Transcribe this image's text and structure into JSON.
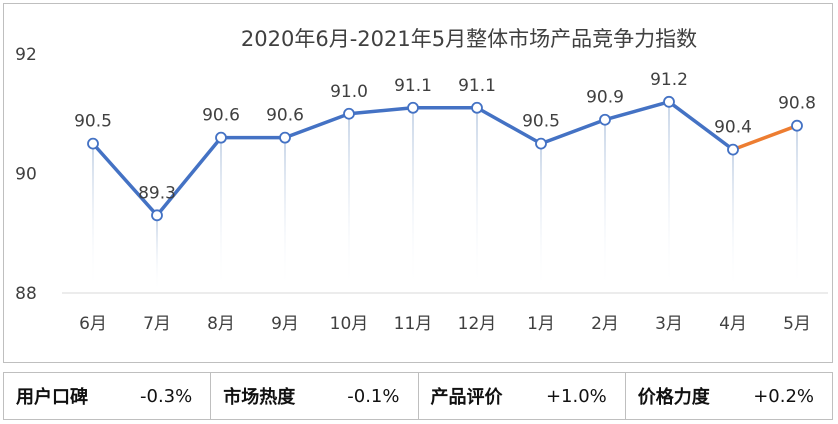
{
  "chart_data": {
    "type": "line",
    "title": "2020年6月-2021年5月整体市场产品竞争力指数",
    "categories": [
      "6月",
      "7月",
      "8月",
      "9月",
      "10月",
      "11月",
      "12月",
      "1月",
      "2月",
      "3月",
      "4月",
      "5月"
    ],
    "values": [
      90.5,
      89.3,
      90.6,
      90.6,
      91.0,
      91.1,
      91.1,
      90.5,
      90.9,
      91.2,
      90.4,
      90.8
    ],
    "value_labels": [
      "90.5",
      "89.3",
      "90.6",
      "90.6",
      "91.0",
      "91.1",
      "91.1",
      "90.5",
      "90.9",
      "91.2",
      "90.4",
      "90.8"
    ],
    "ylim": [
      88,
      92
    ],
    "yticks": [
      "88",
      "90",
      "92"
    ],
    "xlabel": "",
    "ylabel": "",
    "grid": false,
    "line_color": "#4472c4",
    "last_segment_color": "#ed7d31"
  },
  "metrics": [
    {
      "name": "用户口碑",
      "value": "-0.3%"
    },
    {
      "name": "市场热度",
      "value": "-0.1%"
    },
    {
      "name": "产品评价",
      "value": "+1.0%"
    },
    {
      "name": "价格力度",
      "value": "+0.2%"
    }
  ]
}
